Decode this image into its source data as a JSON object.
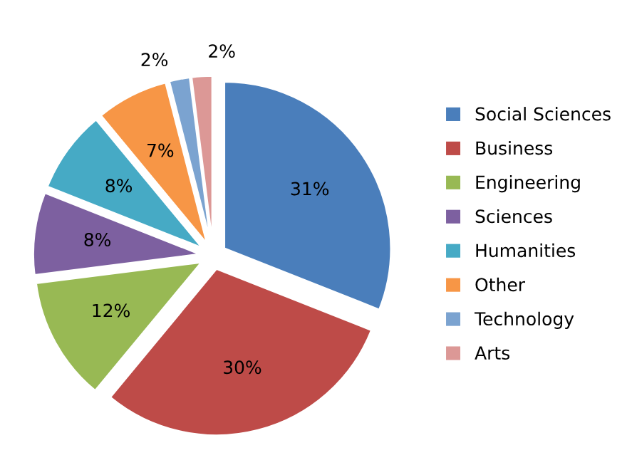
{
  "chart_data": {
    "type": "pie",
    "categories": [
      "Social Sciences",
      "Business",
      "Engineering",
      "Sciences",
      "Humanities",
      "Other",
      "Technology",
      "Arts"
    ],
    "values": [
      31,
      30,
      12,
      8,
      8,
      7,
      2,
      2
    ],
    "value_labels": [
      "31%",
      "30%",
      "12%",
      "8%",
      "8%",
      "7%",
      "2%",
      "2%"
    ],
    "colors": [
      "#4a7ebb",
      "#be4b48",
      "#98b954",
      "#7d60a0",
      "#46aac5",
      "#f79646",
      "#7ba3d0",
      "#dc9896"
    ],
    "legend": "right"
  }
}
